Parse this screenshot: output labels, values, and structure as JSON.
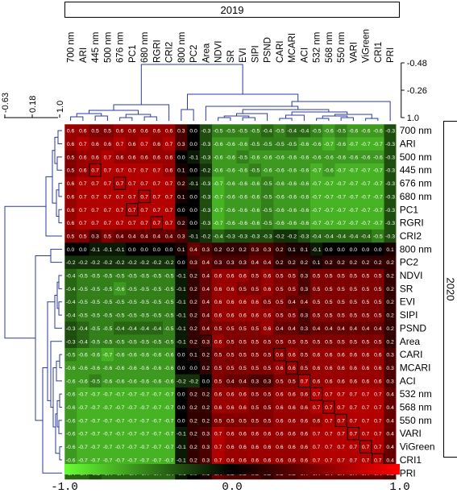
{
  "chart_data": {
    "type": "heatmap",
    "col_year_label": "2019",
    "row_year_label": "2020",
    "columns": [
      "700 nm",
      "ARI",
      "445 nm",
      "500 nm",
      "676 nm",
      "PC1",
      "680 nm",
      "RGRI",
      "CRI2",
      "800 nm",
      "PC2",
      "Area",
      "NDVI",
      "SR",
      "EVI",
      "SIPI",
      "PSND",
      "CARI",
      "MCARI",
      "ACI",
      "532 nm",
      "568 nm",
      "550 nm",
      "VARI",
      "ViGreen",
      "CRI1",
      "PRI"
    ],
    "rows": [
      "700 nm",
      "ARI",
      "500 nm",
      "445 nm",
      "676 nm",
      "680 nm",
      "PC1",
      "RGRI",
      "CRI2",
      "800 nm",
      "PC2",
      "NDVI",
      "SR",
      "EVI",
      "SIPI",
      "PSND",
      "Area",
      "CARI",
      "MCARI",
      "ACI",
      "532 nm",
      "568 nm",
      "550 nm",
      "VARI",
      "ViGreen",
      "CRI1",
      "PRI"
    ],
    "values": [
      [
        0.6,
        0.6,
        0.5,
        0.5,
        0.6,
        0.6,
        0.6,
        0.6,
        0.6,
        0.3,
        0.0,
        -0.3,
        -0.5,
        -0.5,
        -0.5,
        -0.5,
        -0.4,
        -0.5,
        -0.4,
        -0.4,
        -0.5,
        -0.6,
        -0.5,
        -0.6,
        -0.6,
        -0.6,
        -0.3
      ],
      [
        0.6,
        0.7,
        0.6,
        0.6,
        0.7,
        0.6,
        0.7,
        0.6,
        0.7,
        0.3,
        0.0,
        -0.3,
        -0.6,
        -0.6,
        -0.6,
        -0.5,
        -0.5,
        -0.5,
        -0.5,
        -0.6,
        -0.6,
        -0.7,
        -0.6,
        -0.7,
        -0.7,
        -0.7,
        -0.3
      ],
      [
        0.5,
        0.6,
        0.6,
        0.7,
        0.6,
        0.6,
        0.6,
        0.6,
        0.6,
        0.0,
        -0.1,
        -0.3,
        -0.6,
        -0.6,
        -0.5,
        -0.6,
        -0.6,
        -0.6,
        -0.6,
        -0.6,
        -0.6,
        -0.6,
        -0.6,
        -0.6,
        -0.6,
        -0.6,
        -0.3
      ],
      [
        0.5,
        0.6,
        0.7,
        0.7,
        0.7,
        0.7,
        0.7,
        0.7,
        0.6,
        0.1,
        0.0,
        -0.2,
        -0.6,
        -0.6,
        -0.6,
        -0.5,
        -0.6,
        -0.6,
        -0.6,
        -0.6,
        -0.7,
        -0.6,
        -0.7,
        -0.7,
        -0.7,
        -0.7,
        -0.3
      ],
      [
        0.6,
        0.7,
        0.7,
        0.7,
        0.7,
        0.7,
        0.7,
        0.7,
        0.7,
        0.2,
        -0.1,
        -0.3,
        -0.7,
        -0.6,
        -0.6,
        -0.6,
        -0.5,
        -0.6,
        -0.6,
        -0.6,
        -0.7,
        -0.7,
        -0.7,
        -0.7,
        -0.7,
        -0.7,
        -0.3
      ],
      [
        0.6,
        0.7,
        0.7,
        0.7,
        0.7,
        0.7,
        0.7,
        0.7,
        0.7,
        0.1,
        0.0,
        -0.3,
        -0.7,
        -0.6,
        -0.6,
        -0.6,
        -0.5,
        -0.6,
        -0.6,
        -0.6,
        -0.7,
        -0.7,
        -0.7,
        -0.7,
        -0.7,
        -0.7,
        -0.3
      ],
      [
        0.6,
        0.7,
        0.7,
        0.7,
        0.7,
        0.7,
        0.7,
        0.7,
        0.7,
        0.0,
        0.0,
        -0.3,
        -0.7,
        -0.6,
        -0.6,
        -0.6,
        -0.5,
        -0.6,
        -0.6,
        -0.6,
        -0.7,
        -0.7,
        -0.7,
        -0.7,
        -0.7,
        -0.7,
        -0.3
      ],
      [
        0.6,
        0.7,
        0.7,
        0.7,
        0.7,
        0.7,
        0.7,
        0.7,
        0.7,
        0.2,
        0.0,
        -0.3,
        -0.7,
        -0.6,
        -0.6,
        -0.6,
        -0.5,
        -0.6,
        -0.6,
        -0.6,
        -0.7,
        -0.7,
        -0.7,
        -0.7,
        -0.7,
        -0.7,
        -0.3
      ],
      [
        0.5,
        0.5,
        0.3,
        0.5,
        0.4,
        0.4,
        0.4,
        0.4,
        0.4,
        0.3,
        -0.1,
        -0.2,
        -0.4,
        -0.3,
        -0.3,
        -0.3,
        -0.3,
        -0.2,
        -0.2,
        -0.3,
        -0.4,
        -0.4,
        -0.4,
        -0.4,
        -0.4,
        -0.5,
        -0.3
      ],
      [
        0.0,
        0.0,
        -0.1,
        -0.1,
        -0.1,
        0.0,
        0.0,
        0.0,
        0.0,
        0.1,
        0.4,
        0.3,
        0.2,
        0.2,
        0.2,
        0.3,
        0.3,
        0.2,
        0.1,
        0.1,
        -0.1,
        0.0,
        0.0,
        0.0,
        0.0,
        0.0,
        0.1
      ],
      [
        -0.2,
        -0.2,
        -0.2,
        -0.2,
        -0.2,
        -0.2,
        -0.2,
        -0.2,
        -0.2,
        0.0,
        0.3,
        0.4,
        0.3,
        0.3,
        0.3,
        0.4,
        0.4,
        0.2,
        0.2,
        0.2,
        0.1,
        0.2,
        0.2,
        0.2,
        0.2,
        0.2,
        0.2
      ],
      [
        -0.4,
        -0.5,
        -0.5,
        -0.5,
        -0.5,
        -0.5,
        -0.5,
        -0.5,
        -0.5,
        -0.1,
        0.2,
        0.4,
        0.6,
        0.6,
        0.6,
        0.5,
        0.6,
        0.5,
        0.5,
        0.3,
        0.5,
        0.5,
        0.5,
        0.5,
        0.5,
        0.5,
        0.2
      ],
      [
        -0.4,
        -0.5,
        -0.5,
        -0.5,
        -0.6,
        -0.5,
        -0.5,
        -0.5,
        -0.5,
        -0.1,
        0.2,
        0.4,
        0.6,
        0.6,
        0.5,
        0.5,
        0.6,
        0.5,
        0.5,
        0.3,
        0.5,
        0.5,
        0.5,
        0.5,
        0.5,
        0.5,
        0.2
      ],
      [
        -0.4,
        -0.5,
        -0.5,
        -0.5,
        -0.5,
        -0.5,
        -0.5,
        -0.5,
        -0.5,
        -0.1,
        0.2,
        0.4,
        0.6,
        0.6,
        0.6,
        0.6,
        0.5,
        0.5,
        0.4,
        0.4,
        0.5,
        0.5,
        0.5,
        0.5,
        0.5,
        0.5,
        0.2
      ],
      [
        -0.4,
        -0.5,
        -0.5,
        -0.5,
        -0.5,
        -0.5,
        -0.5,
        -0.5,
        -0.5,
        -0.1,
        0.2,
        0.4,
        0.6,
        0.6,
        0.6,
        0.6,
        0.6,
        0.5,
        0.5,
        0.3,
        0.5,
        0.5,
        0.5,
        0.5,
        0.5,
        0.5,
        0.2
      ],
      [
        -0.3,
        -0.4,
        -0.5,
        -0.5,
        -0.4,
        -0.4,
        -0.4,
        -0.4,
        -0.5,
        -0.1,
        0.2,
        0.4,
        0.5,
        0.5,
        0.5,
        0.5,
        0.6,
        0.4,
        0.4,
        0.3,
        0.4,
        0.4,
        0.4,
        0.4,
        0.4,
        0.4,
        0.2
      ],
      [
        -0.3,
        -0.4,
        -0.5,
        -0.5,
        -0.5,
        -0.5,
        -0.5,
        -0.5,
        -0.5,
        -0.1,
        0.2,
        0.3,
        0.6,
        0.5,
        0.5,
        0.5,
        0.5,
        0.5,
        0.5,
        0.5,
        0.5,
        0.5,
        0.5,
        0.5,
        0.5,
        0.5,
        0.2
      ],
      [
        -0.5,
        -0.6,
        -0.6,
        -0.7,
        -0.6,
        -0.6,
        -0.6,
        -0.6,
        -0.6,
        0.0,
        0.1,
        0.2,
        0.5,
        0.5,
        0.5,
        0.5,
        0.5,
        0.6,
        0.6,
        0.5,
        0.6,
        0.6,
        0.6,
        0.6,
        0.6,
        0.6,
        0.3
      ],
      [
        -0.6,
        -0.6,
        -0.6,
        -0.6,
        -0.6,
        -0.6,
        -0.6,
        -0.6,
        -0.6,
        0.0,
        0.0,
        0.2,
        0.5,
        0.5,
        0.5,
        0.5,
        0.5,
        0.6,
        0.6,
        0.5,
        0.6,
        0.6,
        0.6,
        0.6,
        0.6,
        0.6,
        0.3
      ],
      [
        -0.6,
        -0.6,
        -0.5,
        -0.6,
        -0.6,
        -0.6,
        -0.6,
        -0.6,
        -0.6,
        -0.2,
        -0.2,
        0.0,
        0.5,
        0.4,
        0.4,
        0.3,
        0.3,
        0.5,
        0.5,
        0.7,
        0.6,
        0.6,
        0.6,
        0.6,
        0.6,
        0.6,
        0.3
      ],
      [
        -0.6,
        -0.7,
        -0.7,
        -0.7,
        -0.7,
        -0.7,
        -0.7,
        -0.7,
        -0.7,
        0.0,
        0.2,
        0.2,
        0.6,
        0.6,
        0.6,
        0.5,
        0.5,
        0.6,
        0.6,
        0.6,
        0.7,
        0.7,
        0.7,
        0.7,
        0.7,
        0.7,
        0.4
      ],
      [
        -0.6,
        -0.7,
        -0.7,
        -0.7,
        -0.7,
        -0.7,
        -0.7,
        -0.7,
        -0.7,
        0.0,
        0.2,
        0.2,
        0.6,
        0.6,
        0.6,
        0.5,
        0.5,
        0.6,
        0.6,
        0.6,
        0.7,
        0.7,
        0.7,
        0.7,
        0.7,
        0.7,
        0.4
      ],
      [
        -0.6,
        -0.7,
        -0.7,
        -0.7,
        -0.7,
        -0.7,
        -0.7,
        -0.7,
        -0.7,
        0.0,
        0.2,
        0.2,
        0.5,
        0.5,
        0.5,
        0.5,
        0.5,
        0.6,
        0.6,
        0.6,
        0.6,
        0.7,
        0.7,
        0.7,
        0.7,
        0.7,
        0.4
      ],
      [
        -0.6,
        -0.7,
        -0.7,
        -0.7,
        -0.7,
        -0.7,
        -0.7,
        -0.7,
        -0.7,
        -0.1,
        0.2,
        0.3,
        0.7,
        0.6,
        0.6,
        0.6,
        0.6,
        0.6,
        0.6,
        0.6,
        0.7,
        0.7,
        0.7,
        0.7,
        0.7,
        0.7,
        0.4
      ],
      [
        -0.6,
        -0.7,
        -0.7,
        -0.7,
        -0.7,
        -0.7,
        -0.7,
        -0.7,
        -0.7,
        -0.1,
        0.2,
        0.3,
        0.7,
        0.6,
        0.6,
        0.6,
        0.6,
        0.6,
        0.6,
        0.6,
        0.7,
        0.7,
        0.7,
        0.7,
        0.7,
        0.7,
        0.4
      ],
      [
        -0.6,
        -0.7,
        -0.7,
        -0.7,
        -0.7,
        -0.7,
        -0.7,
        -0.7,
        -0.7,
        -0.1,
        0.2,
        0.3,
        0.7,
        0.6,
        0.6,
        0.6,
        0.6,
        0.6,
        0.6,
        0.6,
        0.7,
        0.7,
        0.7,
        0.7,
        0.7,
        0.7,
        0.4
      ],
      [
        -0.4,
        -0.4,
        -0.3,
        -0.4,
        -0.4,
        -0.4,
        -0.4,
        -0.4,
        -0.4,
        -0.1,
        0.0,
        0.1,
        0.4,
        0.3,
        0.3,
        0.3,
        0.2,
        0.3,
        0.3,
        0.4,
        0.4,
        0.4,
        0.4,
        0.4,
        0.4,
        0.4,
        0.3
      ]
    ],
    "highlight_cells": [
      [
        3,
        2
      ],
      [
        4,
        4
      ],
      [
        5,
        6
      ],
      [
        6,
        5
      ],
      [
        7,
        7
      ],
      [
        16,
        11
      ],
      [
        17,
        17
      ],
      [
        18,
        18
      ],
      [
        19,
        19
      ],
      [
        20,
        20
      ],
      [
        21,
        21
      ],
      [
        22,
        22
      ],
      [
        23,
        23
      ],
      [
        24,
        24
      ],
      [
        25,
        25
      ]
    ],
    "top_dendrogram_ticks": [
      "-0.48",
      "-0.26",
      "1.0"
    ],
    "left_dendrogram_ticks": [
      "-0.63",
      "0.18",
      "1.0"
    ],
    "colorbar": {
      "min_label": "-1.0",
      "mid_label": "0.0",
      "max_label": "1.0",
      "min": -1.0,
      "max": 1.0,
      "colors": [
        "#66ff33",
        "#000000",
        "#ff0000"
      ]
    }
  }
}
